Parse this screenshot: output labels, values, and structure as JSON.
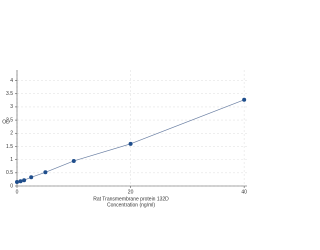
{
  "chart_data": {
    "type": "line",
    "x_label": "Rat Transmembrane protein 132D",
    "x_sublabel": "Concentration (ng/ml)",
    "y_label": "OD",
    "x": [
      0,
      0.625,
      1.25,
      2.5,
      5,
      10,
      20,
      40
    ],
    "values": [
      0.15,
      0.18,
      0.22,
      0.33,
      0.52,
      0.95,
      1.6,
      3.27
    ],
    "color": "#1f4e8c",
    "line_color": "#6a7fa3",
    "xlim": [
      0,
      40.5
    ],
    "xticks": [
      0,
      20,
      40
    ],
    "ylim": [
      0,
      4.4
    ],
    "yticks": [
      0,
      0.5,
      1,
      1.5,
      2,
      2.5,
      3,
      3.5,
      4
    ],
    "grid": true
  }
}
